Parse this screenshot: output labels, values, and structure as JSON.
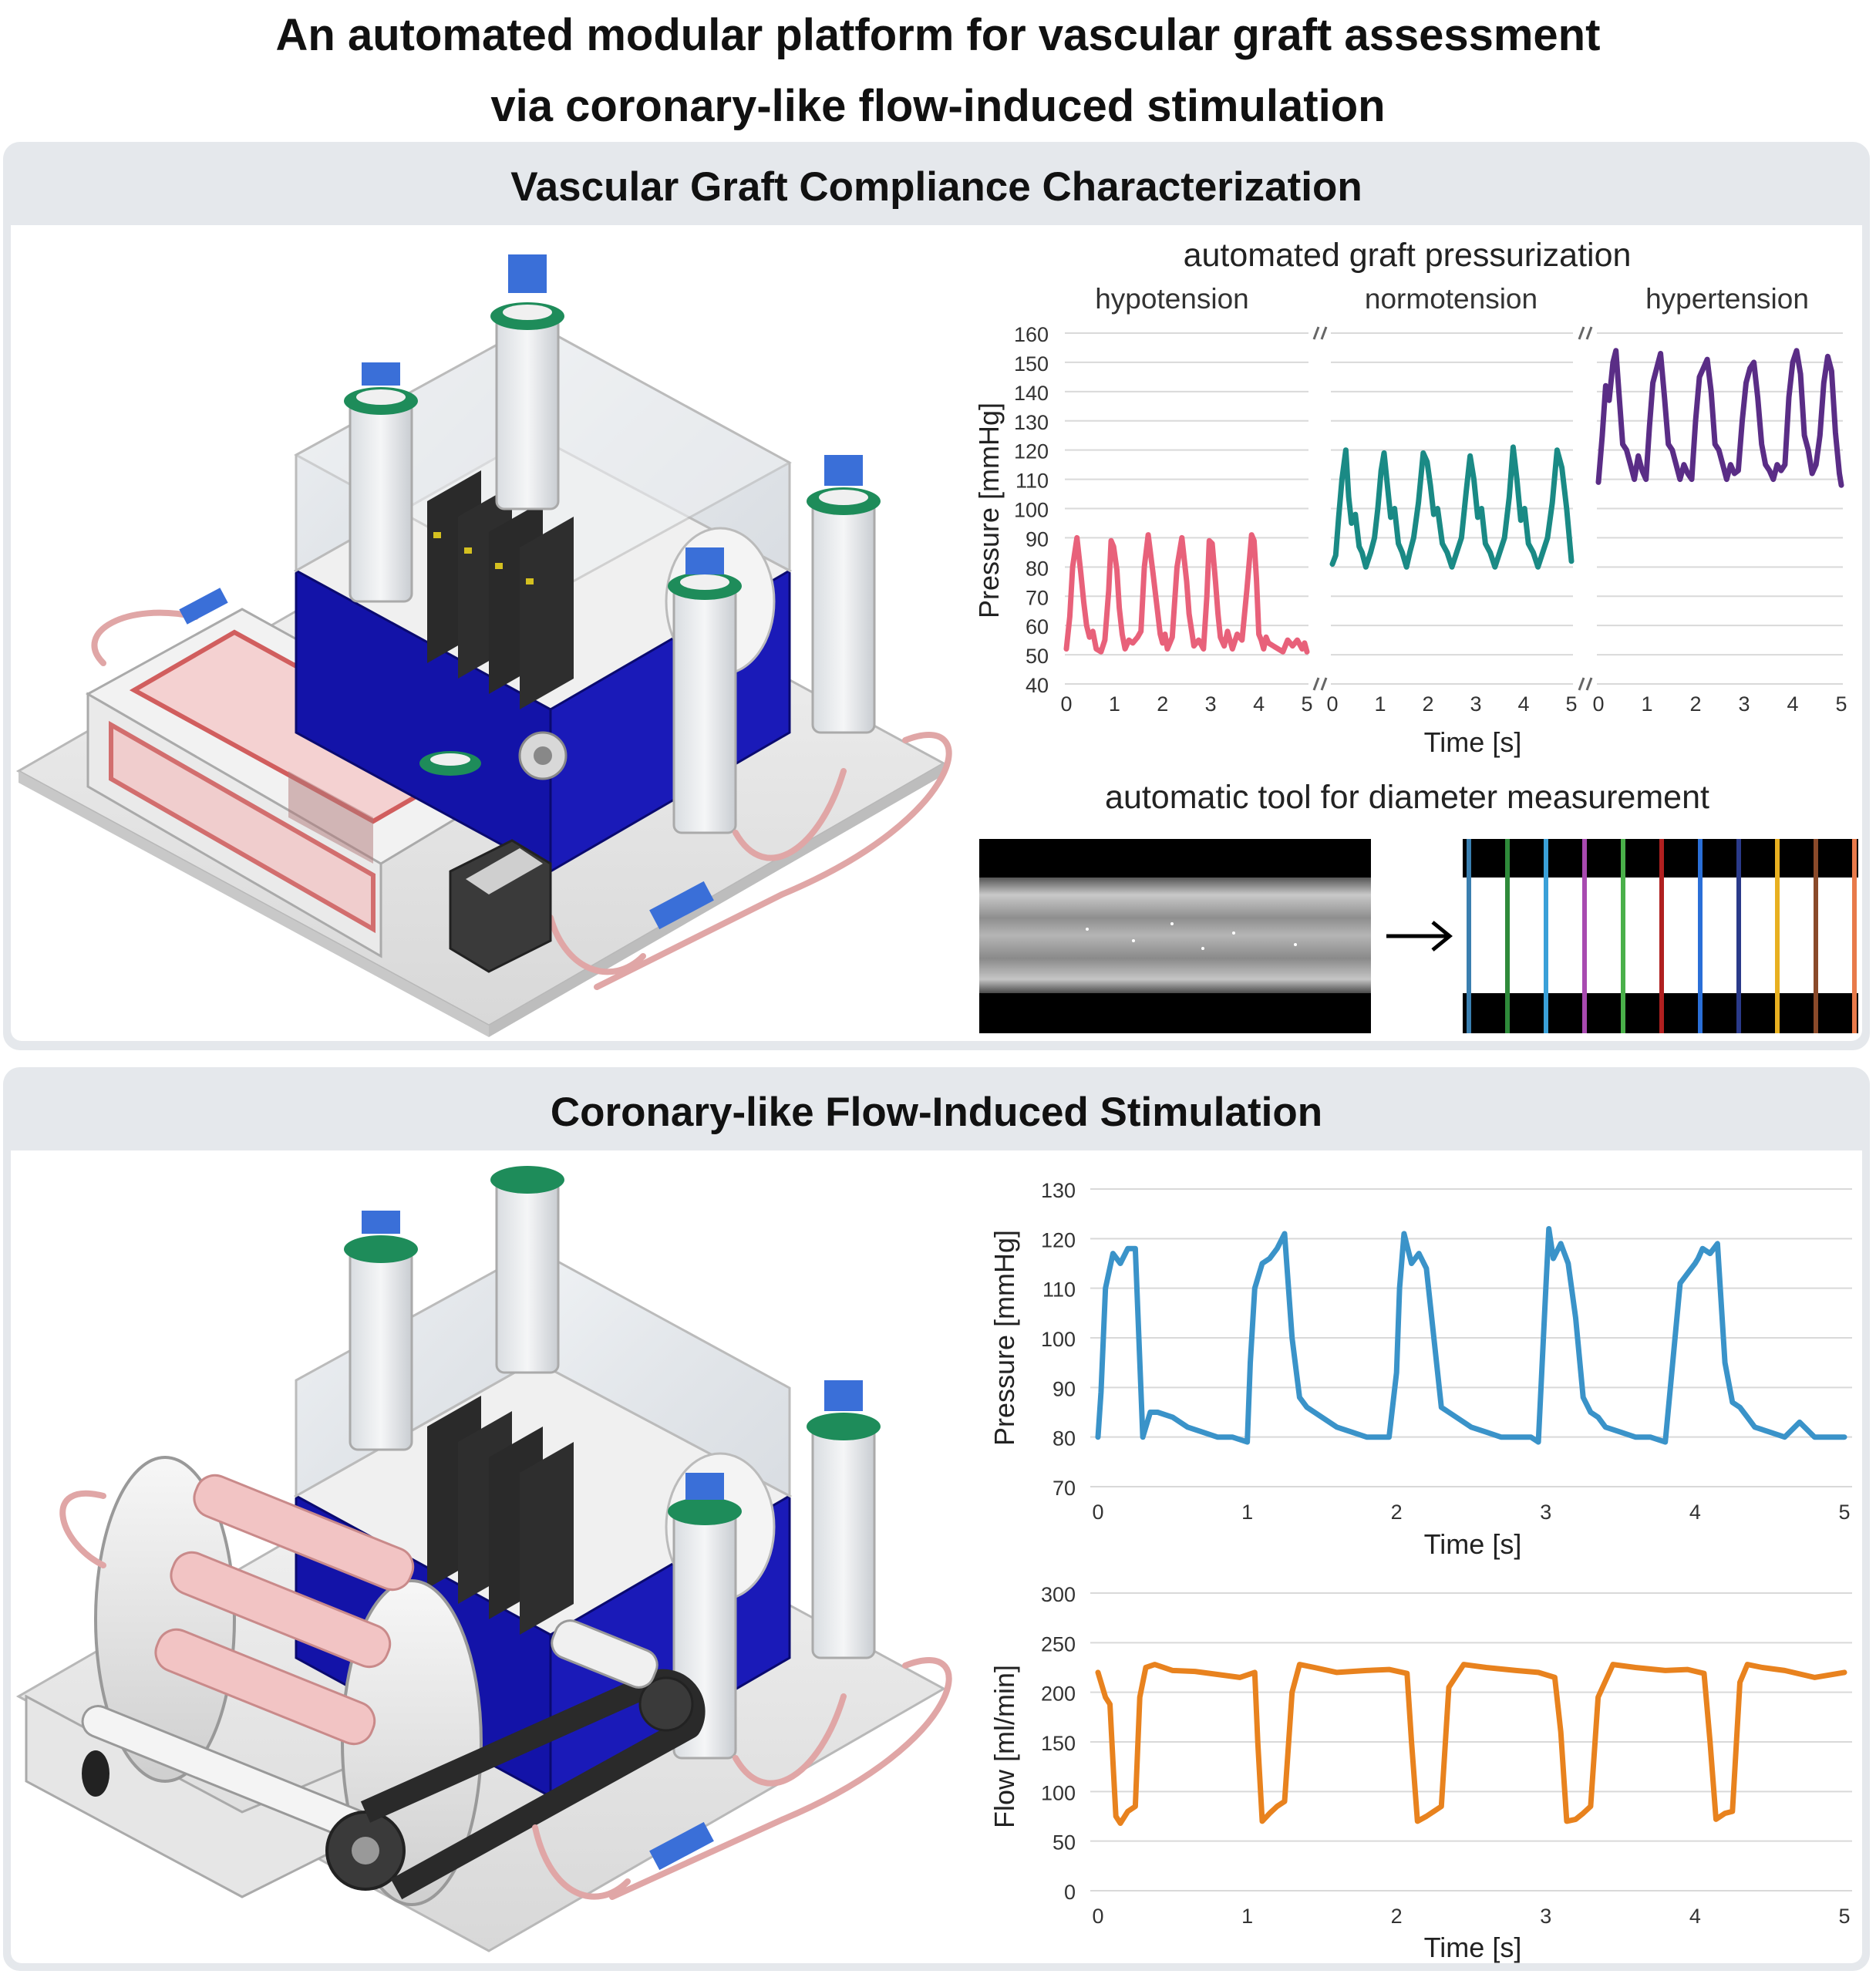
{
  "title": {
    "line1": "An automated modular platform for vascular graft assessment",
    "line2": "via coronary-like flow-induced stimulation"
  },
  "panels": {
    "compliance": {
      "title": "Vascular Graft Compliance Characterization"
    },
    "stimulation": {
      "title": "Coronary-like Flow-Induced Stimulation"
    }
  },
  "pressurization": {
    "title": "automated graft pressurization",
    "conditions": [
      "hypotension",
      "normotension",
      "hypertension"
    ]
  },
  "diameter_tool": {
    "title": "automatic tool for diameter measurement"
  },
  "colors": {
    "hypotension": "#e8617a",
    "normotension": "#1a8a85",
    "hypertension": "#5a2d86",
    "pressure": "#3a93c9",
    "flow": "#e8821e",
    "panel_bg": "#e5e8ec",
    "device_blue": "#1313a8",
    "gridline": "#d9d9d9"
  },
  "chart_data": [
    {
      "type": "line",
      "title": "automated graft pressurization",
      "xlabel": "Time [s]",
      "ylabel": "Pressure [mmHg]",
      "ylim": [
        40,
        160
      ],
      "yticks": [
        40,
        50,
        60,
        70,
        80,
        90,
        100,
        110,
        120,
        130,
        140,
        150,
        160
      ],
      "xlim": [
        0,
        5
      ],
      "xticks": [
        0,
        1,
        2,
        3,
        4,
        5
      ],
      "grid": true,
      "series": [
        {
          "name": "hypotension",
          "x": [
            0,
            0.07,
            0.13,
            0.22,
            0.3,
            0.36,
            0.42,
            0.48,
            0.55,
            0.62,
            0.72,
            0.8,
            0.88,
            0.93,
            0.98,
            1.05,
            1.1,
            1.16,
            1.22,
            1.3,
            1.38,
            1.48,
            1.55,
            1.62,
            1.7,
            1.8,
            1.9,
            1.95,
            2.0,
            2.05,
            2.1,
            2.15,
            2.2,
            2.3,
            2.4,
            2.5,
            2.55,
            2.65,
            2.75,
            2.85,
            2.92,
            2.97,
            3.03,
            3.1,
            3.15,
            3.2,
            3.28,
            3.35,
            3.45,
            3.55,
            3.65,
            3.75,
            3.85,
            3.9,
            3.95,
            4.0,
            4.05,
            4.1,
            4.15,
            4.2,
            4.3,
            4.4,
            4.5,
            4.6,
            4.7,
            4.8,
            4.9,
            4.95,
            5.0
          ],
          "values": [
            52,
            63,
            80,
            90,
            78,
            68,
            60,
            56,
            58,
            52,
            51,
            55,
            72,
            89,
            87,
            79,
            66,
            57,
            52,
            55,
            54,
            56,
            58,
            80,
            91,
            78,
            64,
            57,
            54,
            57,
            52,
            54,
            56,
            80,
            90,
            75,
            64,
            53,
            55,
            52,
            70,
            89,
            88,
            75,
            64,
            56,
            53,
            58,
            52,
            57,
            55,
            72,
            91,
            89,
            76,
            57,
            55,
            52,
            56,
            54,
            53,
            52,
            51,
            55,
            53,
            55,
            52,
            54,
            51
          ]
        },
        {
          "name": "normotension",
          "x": [
            0,
            0.07,
            0.13,
            0.2,
            0.28,
            0.34,
            0.4,
            0.48,
            0.56,
            0.62,
            0.7,
            0.8,
            0.88,
            0.95,
            1.02,
            1.08,
            1.15,
            1.22,
            1.3,
            1.38,
            1.46,
            1.55,
            1.62,
            1.7,
            1.8,
            1.9,
            1.98,
            2.05,
            2.12,
            2.2,
            2.3,
            2.4,
            2.5,
            2.6,
            2.7,
            2.8,
            2.88,
            2.96,
            3.04,
            3.12,
            3.2,
            3.3,
            3.4,
            3.5,
            3.6,
            3.7,
            3.78,
            3.86,
            3.94,
            4.02,
            4.1,
            4.2,
            4.3,
            4.4,
            4.5,
            4.6,
            4.7,
            4.8,
            4.9,
            5.0
          ],
          "values": [
            81,
            84,
            97,
            110,
            120,
            104,
            95,
            98,
            87,
            85,
            80,
            85,
            90,
            100,
            113,
            119,
            108,
            97,
            100,
            88,
            85,
            80,
            85,
            90,
            102,
            119,
            116,
            108,
            98,
            100,
            88,
            85,
            80,
            85,
            90,
            106,
            118,
            110,
            97,
            100,
            88,
            85,
            80,
            85,
            90,
            104,
            121,
            110,
            96,
            100,
            88,
            85,
            80,
            85,
            90,
            102,
            120,
            114,
            100,
            82
          ]
        },
        {
          "name": "hypertension",
          "x": [
            0,
            0.08,
            0.15,
            0.22,
            0.3,
            0.36,
            0.42,
            0.5,
            0.58,
            0.66,
            0.74,
            0.82,
            0.9,
            0.98,
            1.05,
            1.12,
            1.2,
            1.28,
            1.36,
            1.44,
            1.52,
            1.6,
            1.68,
            1.76,
            1.84,
            1.92,
            2.0,
            2.08,
            2.16,
            2.24,
            2.32,
            2.4,
            2.48,
            2.56,
            2.64,
            2.72,
            2.8,
            2.88,
            2.96,
            3.04,
            3.12,
            3.2,
            3.28,
            3.36,
            3.44,
            3.52,
            3.6,
            3.68,
            3.76,
            3.84,
            3.92,
            4.0,
            4.08,
            4.16,
            4.24,
            4.32,
            4.4,
            4.48,
            4.56,
            4.64,
            4.72,
            4.8,
            4.88,
            4.96,
            5.0
          ],
          "values": [
            109,
            125,
            142,
            137,
            150,
            154,
            140,
            122,
            120,
            115,
            110,
            118,
            113,
            110,
            128,
            143,
            148,
            153,
            138,
            122,
            120,
            115,
            110,
            115,
            112,
            110,
            130,
            145,
            148,
            151,
            140,
            122,
            120,
            115,
            110,
            115,
            112,
            113,
            130,
            143,
            148,
            150,
            138,
            122,
            115,
            113,
            110,
            115,
            113,
            115,
            138,
            150,
            154,
            146,
            125,
            120,
            112,
            115,
            125,
            143,
            152,
            147,
            126,
            112,
            108
          ]
        }
      ]
    },
    {
      "type": "line",
      "xlabel": "Time [s]",
      "ylabel": "Pressure [mmHg]",
      "ylim": [
        70,
        130
      ],
      "yticks": [
        70,
        80,
        90,
        100,
        110,
        120,
        130
      ],
      "xlim": [
        0,
        5
      ],
      "xticks": [
        0,
        1,
        2,
        3,
        4,
        5
      ],
      "grid": true,
      "series": [
        {
          "x": [
            0,
            0.02,
            0.05,
            0.1,
            0.15,
            0.2,
            0.25,
            0.3,
            0.35,
            0.4,
            0.5,
            0.6,
            0.7,
            0.8,
            0.9,
            1.0,
            1.02,
            1.05,
            1.1,
            1.15,
            1.2,
            1.25,
            1.3,
            1.35,
            1.4,
            1.5,
            1.6,
            1.7,
            1.8,
            1.9,
            1.95,
            2.0,
            2.02,
            2.05,
            2.1,
            2.15,
            2.2,
            2.25,
            2.3,
            2.35,
            2.4,
            2.5,
            2.6,
            2.7,
            2.8,
            2.9,
            2.95,
            3.0,
            3.02,
            3.05,
            3.1,
            3.15,
            3.2,
            3.25,
            3.3,
            3.35,
            3.4,
            3.5,
            3.6,
            3.7,
            3.8,
            3.9,
            4.0,
            4.02,
            4.05,
            4.1,
            4.15,
            4.2,
            4.25,
            4.3,
            4.35,
            4.4,
            4.5,
            4.6,
            4.7,
            4.8,
            4.85,
            4.9,
            5.0
          ],
          "values": [
            80,
            89,
            110,
            117,
            115,
            118,
            118,
            80,
            85,
            85,
            84,
            82,
            81,
            80,
            80,
            79,
            95,
            110,
            115,
            116,
            118,
            121,
            100,
            88,
            86,
            84,
            82,
            81,
            80,
            80,
            80,
            93,
            110,
            121,
            115,
            117,
            114,
            100,
            86,
            85,
            84,
            82,
            81,
            80,
            80,
            80,
            79,
            110,
            122,
            116,
            119,
            115,
            104,
            88,
            85,
            84,
            82,
            81,
            80,
            80,
            79,
            111,
            115,
            116,
            118,
            117,
            119,
            95,
            87,
            86,
            84,
            82,
            81,
            80,
            83,
            80,
            80,
            80,
            80
          ]
        }
      ]
    },
    {
      "type": "line",
      "xlabel": "Time [s]",
      "ylabel": "Flow [ml/min]",
      "ylim": [
        0,
        300
      ],
      "yticks": [
        0,
        50,
        100,
        150,
        200,
        250,
        300
      ],
      "xlim": [
        0,
        5
      ],
      "xticks": [
        0,
        1,
        2,
        3,
        4,
        5
      ],
      "grid": true,
      "series": [
        {
          "x": [
            0,
            0.05,
            0.08,
            0.1,
            0.12,
            0.15,
            0.2,
            0.25,
            0.28,
            0.32,
            0.38,
            0.5,
            0.65,
            0.8,
            0.95,
            1.05,
            1.07,
            1.1,
            1.15,
            1.2,
            1.25,
            1.3,
            1.35,
            1.45,
            1.6,
            1.8,
            1.95,
            2.07,
            2.1,
            2.14,
            2.2,
            2.25,
            2.3,
            2.35,
            2.45,
            2.6,
            2.8,
            2.95,
            3.06,
            3.1,
            3.14,
            3.2,
            3.25,
            3.3,
            3.35,
            3.45,
            3.6,
            3.8,
            3.95,
            4.06,
            4.1,
            4.14,
            4.2,
            4.25,
            4.3,
            4.35,
            4.45,
            4.6,
            4.8,
            5.0
          ],
          "values": [
            220,
            195,
            188,
            130,
            75,
            68,
            80,
            85,
            195,
            225,
            228,
            222,
            221,
            218,
            215,
            220,
            150,
            70,
            78,
            85,
            90,
            200,
            228,
            225,
            220,
            222,
            223,
            219,
            150,
            70,
            75,
            80,
            85,
            205,
            228,
            225,
            222,
            220,
            215,
            160,
            70,
            72,
            78,
            85,
            195,
            228,
            225,
            222,
            223,
            219,
            150,
            72,
            78,
            80,
            210,
            228,
            225,
            222,
            215,
            220
          ]
        }
      ]
    }
  ]
}
